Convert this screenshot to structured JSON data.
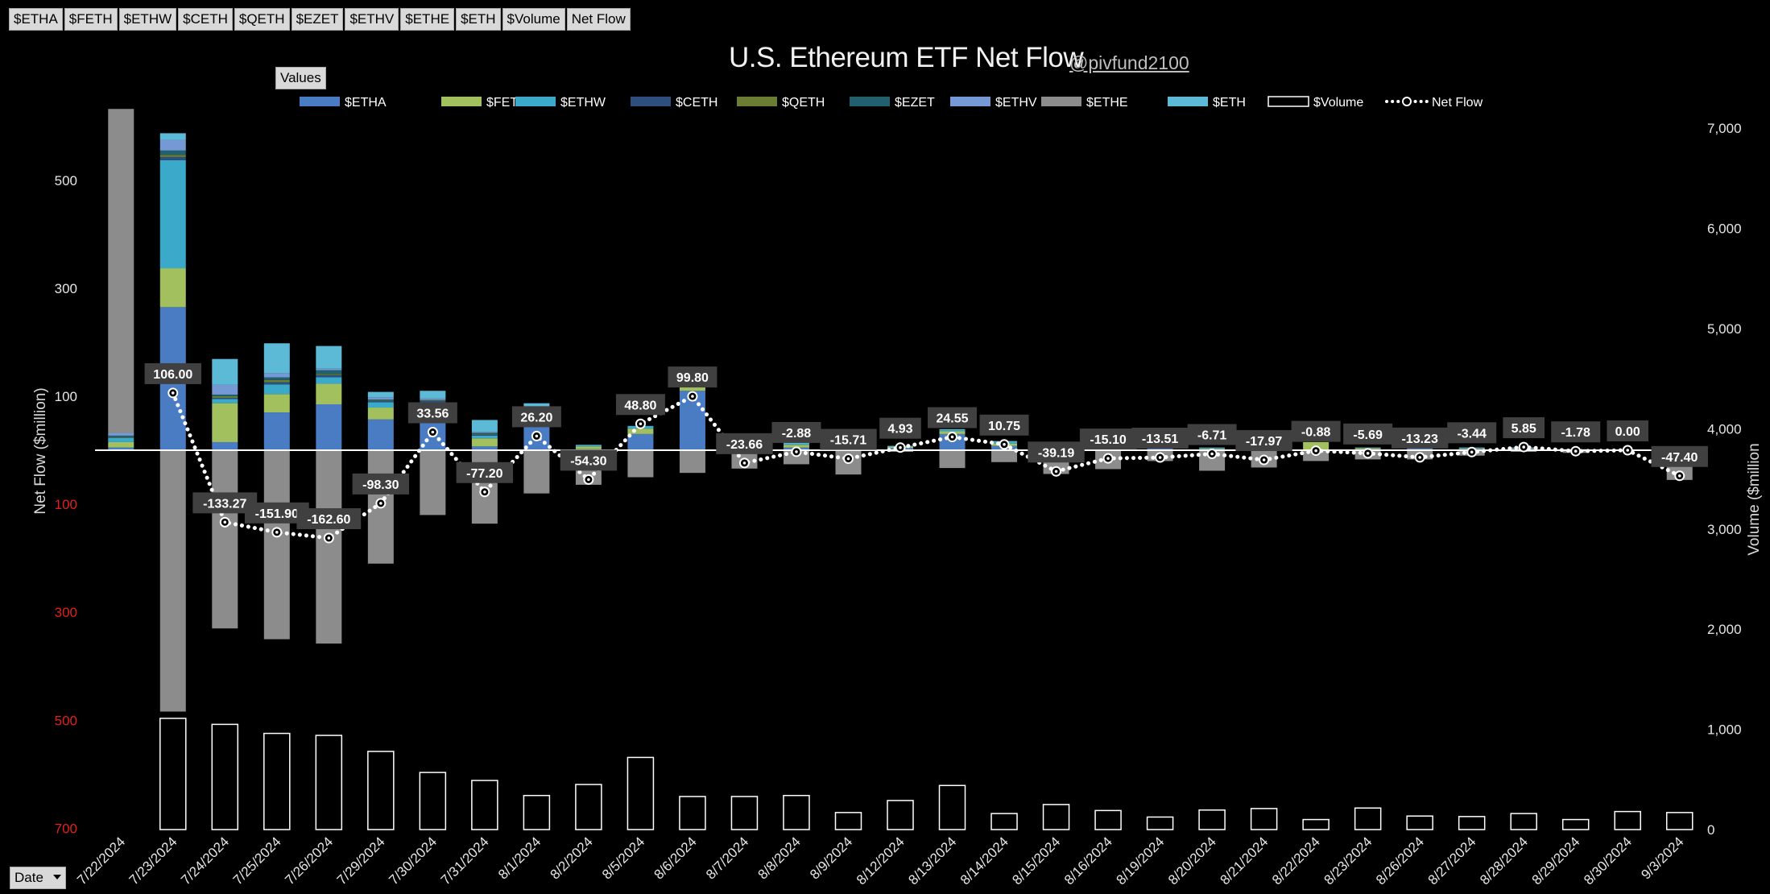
{
  "toolbar": {
    "buttons": [
      "$ETHA",
      "$FETH",
      "$ETHW",
      "$CETH",
      "$QETH",
      "$EZET",
      "$ETHV",
      "$ETHE",
      "$ETH",
      "$Volume",
      "Net Flow"
    ],
    "values_label": "Values",
    "date_label": "Date"
  },
  "colors": {
    "background": "#000000",
    "ETHA": "#4a7cc4",
    "FETH": "#a2c05d",
    "ETHW": "#3ba9c9",
    "CETH": "#2c4f7c",
    "QETH": "#6b7d32",
    "EZET": "#21606e",
    "ETHV": "#7499d4",
    "ETHE": "#8c8c8c",
    "ETH": "#5cbad6",
    "net_flow": "#ffffff",
    "label_bg": "#404040"
  },
  "chart_data": {
    "type": "bar",
    "title": "U.S. Ethereum ETF Net Flow",
    "subtitle": "@pivfund2100",
    "ylabel": "Net Flow ($million)",
    "y2label": "Volume ($million",
    "y_ticks": [
      {
        "value": 500,
        "label": "500",
        "negative": false
      },
      {
        "value": 300,
        "label": "300",
        "negative": false
      },
      {
        "value": 100,
        "label": "100",
        "negative": false
      },
      {
        "value": -100,
        "label": "100",
        "negative": true
      },
      {
        "value": -300,
        "label": "300",
        "negative": true
      },
      {
        "value": -500,
        "label": "500",
        "negative": true
      },
      {
        "value": -700,
        "label": "700",
        "negative": true
      }
    ],
    "y2_ticks": [
      "7,000",
      "6,000",
      "5,000",
      "4,000",
      "3,000",
      "2,000",
      "1,000",
      "0"
    ],
    "y2lim": [
      0,
      7000
    ],
    "legend": [
      "$ETHA",
      "$FETH",
      "$ETHW",
      "$CETH",
      "$QETH",
      "$EZET",
      "$ETHV",
      "$ETHE",
      "$ETH",
      "$Volume",
      "Net Flow"
    ],
    "legend_position": "top",
    "categories": [
      "7/22/2024",
      "7/23/2024",
      "7/24/2024",
      "7/25/2024",
      "7/26/2024",
      "7/29/2024",
      "7/30/2024",
      "7/31/2024",
      "8/1/2024",
      "8/2/2024",
      "8/5/2024",
      "8/6/2024",
      "8/7/2024",
      "8/8/2024",
      "8/9/2024",
      "8/12/2024",
      "8/13/2024",
      "8/14/2024",
      "8/15/2024",
      "8/16/2024",
      "8/19/2024",
      "8/20/2024",
      "8/21/2024",
      "8/22/2024",
      "8/23/2024",
      "8/26/2024",
      "8/27/2024",
      "8/28/2024",
      "8/29/2024",
      "8/30/2024",
      "9/3/2024"
    ],
    "net_flow": [
      null,
      106.0,
      -133.27,
      -151.9,
      -162.6,
      -98.3,
      33.56,
      -77.2,
      26.2,
      -54.3,
      48.8,
      99.8,
      -23.66,
      -2.88,
      -15.71,
      4.93,
      24.55,
      10.75,
      -39.19,
      -15.1,
      -13.51,
      -6.71,
      -17.97,
      -0.88,
      -5.69,
      -13.23,
      -3.44,
      5.85,
      -1.78,
      0.0,
      -47.4
    ],
    "net_flow_labels": [
      "",
      "106.00",
      "-133.27",
      "-151.90",
      "-162.60",
      "-98.30",
      "33.56",
      "-77.20",
      "26.20",
      "-54.30",
      "48.80",
      "99.80",
      "-23.66",
      "-2.88",
      "-15.71",
      "4.93",
      "24.55",
      "10.75",
      "-39.19",
      "-15.10",
      "-13.51",
      "-6.71",
      "-17.97",
      "-0.88",
      "-5.69",
      "-13.23",
      "-3.44",
      "5.85",
      "-1.78",
      "0.00",
      "-47.40"
    ],
    "volume": [
      null,
      1110,
      1050,
      960,
      940,
      780,
      570,
      490,
      340,
      450,
      720,
      330,
      330,
      340,
      170,
      290,
      440,
      160,
      250,
      190,
      125,
      195,
      210,
      100,
      215,
      135,
      130,
      160,
      100,
      180,
      170
    ],
    "series": [
      {
        "name": "$ETHA",
        "values": [
          5,
          265,
          15,
          70,
          85,
          57,
          57,
          7,
          60,
          2,
          30,
          110,
          5,
          5,
          3,
          4,
          30,
          8,
          2,
          2,
          3,
          2,
          2,
          0,
          2,
          3,
          3,
          3,
          2,
          0,
          3
        ]
      },
      {
        "name": "$FETH",
        "values": [
          10,
          72,
          72,
          34,
          38,
          22,
          16,
          15,
          12,
          5,
          10,
          20,
          5,
          5,
          3,
          2,
          5,
          4,
          2,
          2,
          2,
          1,
          2,
          15,
          2,
          1,
          1,
          1,
          0,
          0,
          0
        ]
      },
      {
        "name": "$ETHW",
        "values": [
          8,
          200,
          8,
          18,
          12,
          10,
          15,
          5,
          8,
          2,
          5,
          3,
          3,
          2,
          2,
          0,
          2,
          3,
          1,
          1,
          0,
          1,
          1,
          0,
          0,
          0,
          0,
          0,
          0,
          0,
          0
        ]
      },
      {
        "name": "$CETH",
        "values": [
          1,
          6,
          2,
          4,
          4,
          2,
          3,
          2,
          1,
          0,
          0,
          0,
          0,
          0,
          0,
          0,
          0,
          0,
          0,
          0,
          0,
          0,
          0,
          0,
          0,
          0,
          0,
          0,
          0,
          0,
          0
        ]
      },
      {
        "name": "$QETH",
        "values": [
          1,
          4,
          3,
          4,
          2,
          1,
          1,
          1,
          0,
          0,
          0,
          0,
          0,
          0,
          0,
          0,
          0,
          0,
          0,
          0,
          0,
          0,
          0,
          0,
          0,
          0,
          0,
          0,
          0,
          0,
          0
        ]
      },
      {
        "name": "$EZET",
        "values": [
          2,
          8,
          3,
          5,
          7,
          2,
          1,
          2,
          0,
          0,
          0,
          0,
          0,
          0,
          0,
          0,
          0,
          0,
          0,
          0,
          0,
          0,
          0,
          0,
          0,
          0,
          0,
          0,
          0,
          0,
          0
        ]
      },
      {
        "name": "$ETHV",
        "values": [
          5,
          20,
          18,
          8,
          3,
          4,
          3,
          2,
          1,
          0,
          0,
          0,
          0,
          0,
          0,
          0,
          0,
          0,
          0,
          0,
          0,
          0,
          0,
          0,
          0,
          0,
          0,
          0,
          0,
          0,
          0
        ]
      },
      {
        "name": "$ETHE",
        "values": [
          600,
          -484,
          -330,
          -350,
          -358,
          -210,
          -120,
          -136,
          -80,
          -64,
          -50,
          -42,
          -34,
          -26,
          -45,
          -3,
          -33,
          -22,
          -44,
          -35,
          -20,
          -38,
          -32,
          -20,
          -17,
          -17,
          -10,
          -3,
          -5,
          0,
          -55
        ]
      },
      {
        "name": "$ETH",
        "values": [
          0,
          12,
          48,
          55,
          42,
          10,
          14,
          22,
          5,
          1,
          0,
          0,
          2,
          3,
          1,
          2,
          2,
          2,
          1,
          2,
          2,
          1,
          1,
          0,
          1,
          0,
          1,
          1,
          0,
          0,
          0
        ]
      }
    ]
  }
}
